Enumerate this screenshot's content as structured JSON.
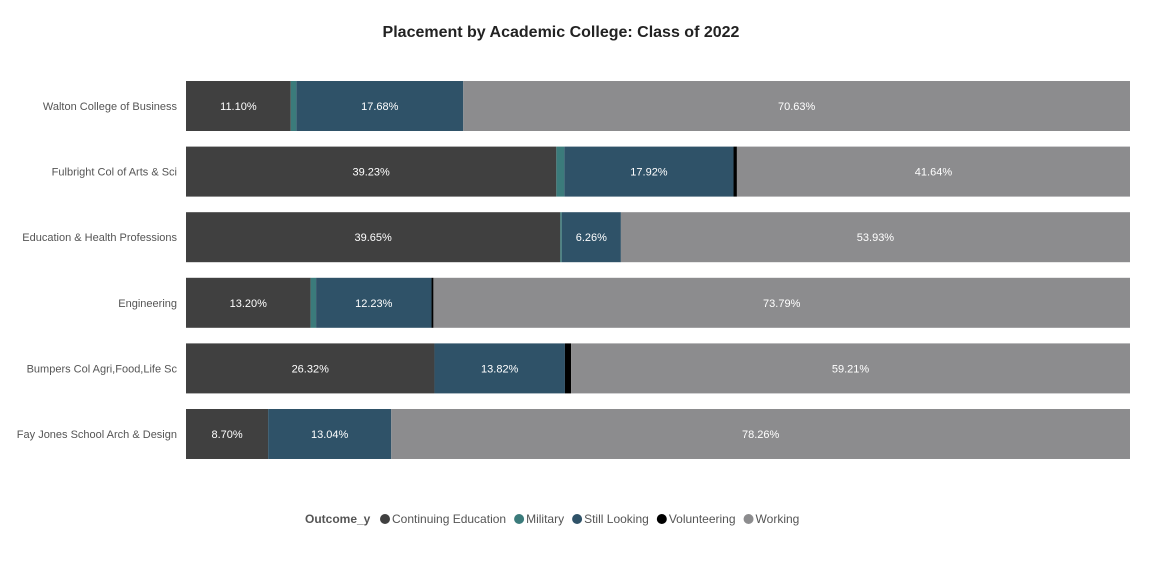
{
  "chart_data": {
    "type": "bar",
    "orientation": "horizontal",
    "stacked": true,
    "title": "Placement by Academic College: Class of 2022",
    "categories": [
      "Walton College of Business",
      "Fulbright Col of Arts & Sci",
      "Education & Health Professions",
      "Engineering",
      "Bumpers Col Agri,Food,Life Sc",
      "Fay Jones School Arch & Design"
    ],
    "series": [
      {
        "name": "Continuing Education",
        "color": "#404040",
        "values": [
          11.1,
          39.23,
          39.65,
          13.2,
          26.32,
          8.7
        ]
      },
      {
        "name": "Military",
        "color": "#3b7b7b",
        "values": [
          0.59,
          0.85,
          0.16,
          0.58,
          0.0,
          0.0
        ]
      },
      {
        "name": "Still Looking",
        "color": "#2f5268",
        "values": [
          17.68,
          17.92,
          6.26,
          12.23,
          13.82,
          13.04
        ]
      },
      {
        "name": "Volunteering",
        "color": "#000000",
        "values": [
          0.0,
          0.36,
          0.0,
          0.2,
          0.65,
          0.0
        ]
      },
      {
        "name": "Working",
        "color": "#8c8c8e",
        "values": [
          70.63,
          41.64,
          53.93,
          73.79,
          59.21,
          78.26
        ]
      }
    ],
    "labels_shown_for": [
      "Continuing Education",
      "Still Looking",
      "Working"
    ],
    "xlim": [
      0,
      100
    ],
    "legend": {
      "title": "Outcome_y",
      "placement": "bottom-center"
    },
    "grid": false
  }
}
